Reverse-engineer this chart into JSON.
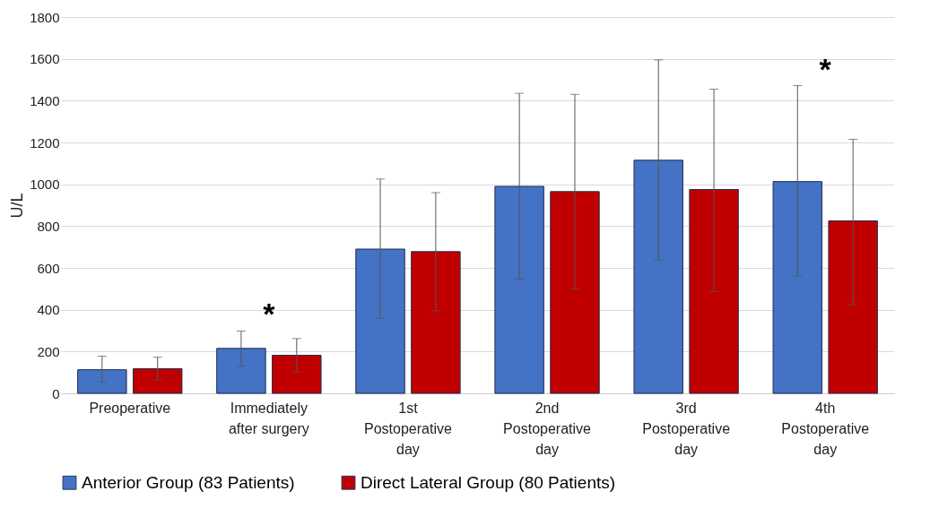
{
  "chart_data": {
    "type": "bar",
    "ylabel": "U/L",
    "categories": [
      "Preoperative",
      "Immediately after surgery",
      "1st Postoperative day",
      "2nd Postoperative day",
      "3rd Postoperative day",
      "4th Postoperative day"
    ],
    "series": [
      {
        "name": "Anterior Group (83 Patients)",
        "color": "#4472c4",
        "values": [
          113,
          215,
          690,
          990,
          1115,
          1013
        ],
        "errors": [
          [
            55,
            178
          ],
          [
            130,
            298
          ],
          [
            358,
            1025
          ],
          [
            545,
            1435
          ],
          [
            638,
            1595
          ],
          [
            560,
            1472
          ]
        ]
      },
      {
        "name": "Direct Lateral Group (80 Patients)",
        "color": "#c00000",
        "values": [
          118,
          182,
          678,
          965,
          975,
          825
        ],
        "errors": [
          [
            65,
            173
          ],
          [
            103,
            262
          ],
          [
            395,
            960
          ],
          [
            500,
            1430
          ],
          [
            487,
            1455
          ],
          [
            425,
            1215
          ]
        ]
      }
    ],
    "ylim": [
      0,
      1800
    ],
    "yticks": [
      0,
      200,
      400,
      600,
      800,
      1000,
      1200,
      1400,
      1600,
      1800
    ],
    "grid": "y",
    "legend": "bottom",
    "annotations": [
      "*",
      "*"
    ]
  }
}
